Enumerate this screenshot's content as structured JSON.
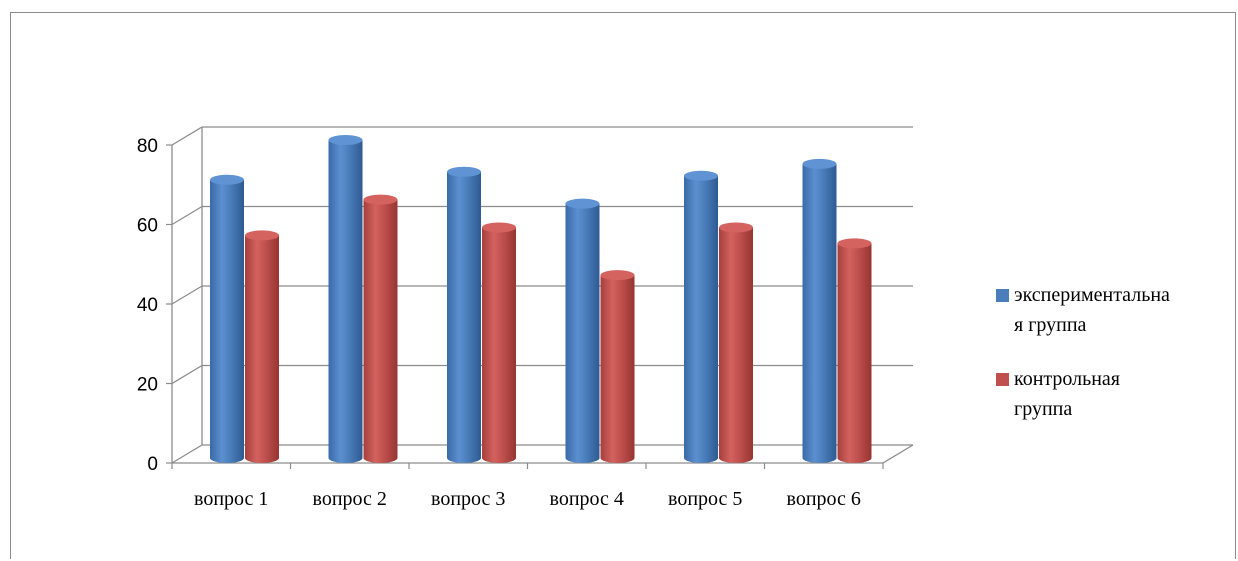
{
  "chart_data": {
    "type": "bar",
    "title": "",
    "xlabel": "",
    "ylabel": "",
    "categories": [
      "вопрос 1",
      "вопрос 2",
      "вопрос 3",
      "вопрос 4",
      "вопрос 5",
      "вопрос 6"
    ],
    "series": [
      {
        "name": "экспериментальная группа",
        "values": [
          70,
          80,
          72,
          64,
          71,
          74
        ],
        "color": "#4a7ebb"
      },
      {
        "name": "контрольная группа",
        "values": [
          56,
          65,
          58,
          46,
          58,
          54
        ],
        "color": "#c0504d"
      }
    ],
    "ylim": [
      0,
      80
    ],
    "yticks": [
      0,
      20,
      40,
      60,
      80
    ],
    "grid": true,
    "legend": "right",
    "style": "3d-cylinder"
  },
  "legend": {
    "items": [
      {
        "label": "экспериментальна\nя группа"
      },
      {
        "label": "контрольная\nгруппа"
      }
    ]
  }
}
